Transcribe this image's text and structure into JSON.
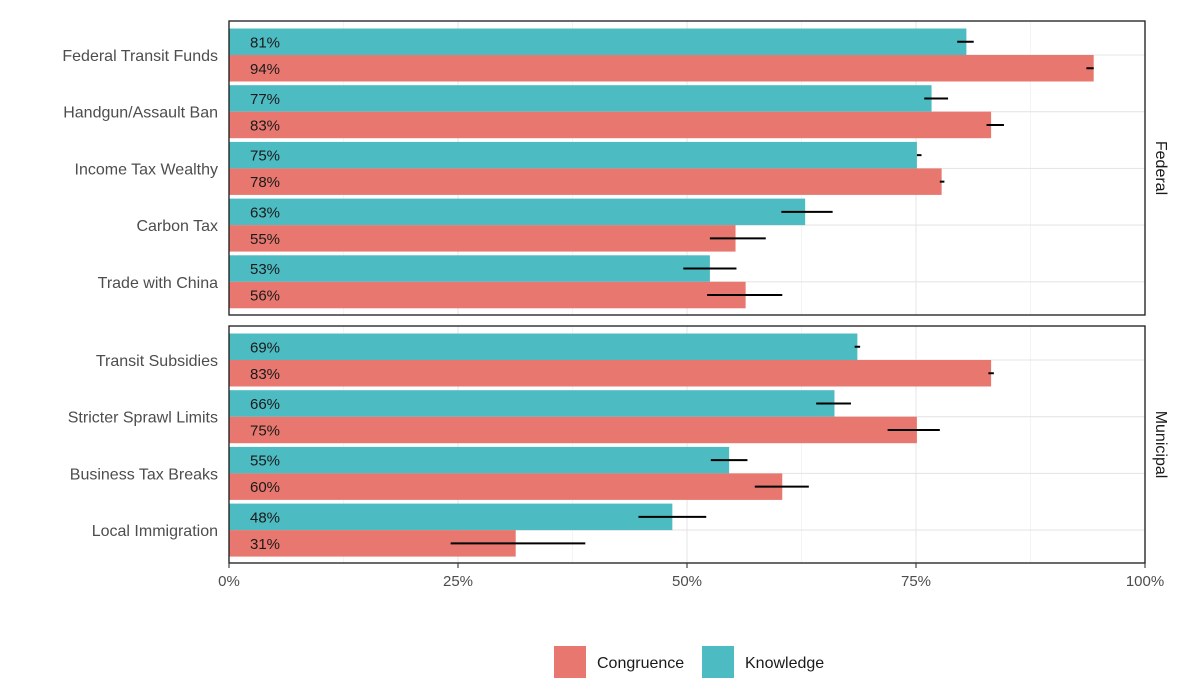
{
  "chart_data": {
    "type": "bar",
    "orientation": "horizontal",
    "title": "",
    "xlabel": "",
    "ylabel": "",
    "xlim": [
      0,
      100
    ],
    "x_ticks": [
      "0%",
      "25%",
      "50%",
      "75%",
      "100%"
    ],
    "x_tick_values": [
      0,
      25,
      50,
      75,
      100
    ],
    "legend": {
      "position": "bottom",
      "entries": [
        {
          "name": "Congruence",
          "color": "#E8786F"
        },
        {
          "name": "Knowledge",
          "color": "#4DBBC2"
        }
      ]
    },
    "series_colors": {
      "knowledge": "#4DBBC2",
      "congruence": "#E8786F"
    },
    "panels": [
      {
        "name": "Federal",
        "categories": [
          {
            "label": "Federal Transit Funds",
            "knowledge": {
              "value": 80.5,
              "text": "81%",
              "ci": [
                79.5,
                81.3
              ]
            },
            "congruence": {
              "value": 94.4,
              "text": "94%",
              "ci": [
                93.6,
                94.4
              ]
            }
          },
          {
            "label": "Handgun/Assault Ban",
            "knowledge": {
              "value": 76.7,
              "text": "77%",
              "ci": [
                75.9,
                78.5
              ]
            },
            "congruence": {
              "value": 83.2,
              "text": "83%",
              "ci": [
                82.7,
                84.6
              ]
            }
          },
          {
            "label": "Income Tax Wealthy",
            "knowledge": {
              "value": 75.1,
              "text": "75%",
              "ci": [
                75.1,
                75.6
              ]
            },
            "congruence": {
              "value": 77.8,
              "text": "78%",
              "ci": [
                77.6,
                78.1
              ]
            }
          },
          {
            "label": "Carbon Tax",
            "knowledge": {
              "value": 62.9,
              "text": "63%",
              "ci": [
                60.3,
                65.9
              ]
            },
            "congruence": {
              "value": 55.3,
              "text": "55%",
              "ci": [
                52.5,
                58.6
              ]
            }
          },
          {
            "label": "Trade with China",
            "knowledge": {
              "value": 52.5,
              "text": "53%",
              "ci": [
                49.6,
                55.4
              ]
            },
            "congruence": {
              "value": 56.4,
              "text": "56%",
              "ci": [
                52.2,
                60.4
              ]
            }
          }
        ]
      },
      {
        "name": "Municipal",
        "categories": [
          {
            "label": "Transit Subsidies",
            "knowledge": {
              "value": 68.6,
              "text": "69%",
              "ci": [
                68.3,
                68.9
              ]
            },
            "congruence": {
              "value": 83.2,
              "text": "83%",
              "ci": [
                82.9,
                83.5
              ]
            }
          },
          {
            "label": "Stricter Sprawl Limits",
            "knowledge": {
              "value": 66.1,
              "text": "66%",
              "ci": [
                64.1,
                67.9
              ]
            },
            "congruence": {
              "value": 75.1,
              "text": "75%",
              "ci": [
                71.9,
                77.6
              ]
            }
          },
          {
            "label": "Business Tax Breaks",
            "knowledge": {
              "value": 54.6,
              "text": "55%",
              "ci": [
                52.6,
                56.6
              ]
            },
            "congruence": {
              "value": 60.4,
              "text": "60%",
              "ci": [
                57.4,
                63.3
              ]
            }
          },
          {
            "label": "Local Immigration",
            "knowledge": {
              "value": 48.4,
              "text": "48%",
              "ci": [
                44.7,
                52.1
              ]
            },
            "congruence": {
              "value": 31.3,
              "text": "31%",
              "ci": [
                24.2,
                38.9
              ]
            }
          }
        ]
      }
    ]
  }
}
